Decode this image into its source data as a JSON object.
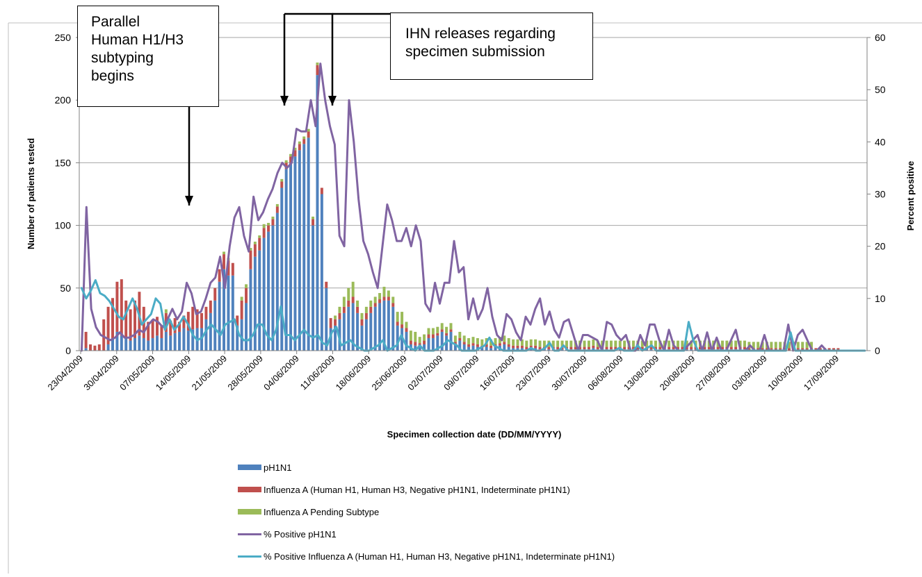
{
  "chart_data": {
    "type": "bar",
    "xlabel": "Specimen collection date (DD/MM/YYYY)",
    "ylabel_left": "Number of patients tested",
    "ylabel_right": "Percent positive",
    "ylim_left": [
      0,
      250
    ],
    "ylim_right": [
      0,
      60
    ],
    "yticks_left": [
      "0",
      "50",
      "100",
      "150",
      "200",
      "250"
    ],
    "yticks_right": [
      "0",
      "10",
      "20",
      "30",
      "40",
      "50",
      "60"
    ],
    "grid": true,
    "x_tick_labels": [
      "23/04/2009",
      "30/04/2009",
      "07/05/2009",
      "14/05/2009",
      "21/05/2009",
      "28/05/2009",
      "04/06/2009",
      "11/06/2009",
      "18/06/2009",
      "25/06/2009",
      "02/07/2009",
      "09/07/2009",
      "16/07/2009",
      "23/07/2009",
      "30/07/2009",
      "06/08/2009",
      "13/08/2009",
      "20/08/2009",
      "27/08/2009",
      "03/09/2009",
      "10/09/2009",
      "17/09/2009"
    ],
    "legend_position": "bottom",
    "series": [
      {
        "name": "pH1N1",
        "kind": "bar",
        "color": "#4f81bd",
        "axis": "left",
        "values": [
          0,
          2,
          0,
          0,
          0,
          0,
          5,
          10,
          15,
          12,
          10,
          8,
          10,
          12,
          10,
          8,
          10,
          12,
          10,
          15,
          12,
          14,
          15,
          18,
          16,
          17,
          18,
          18,
          25,
          30,
          40,
          55,
          65,
          60,
          60,
          20,
          25,
          38,
          65,
          75,
          80,
          90,
          95,
          100,
          110,
          130,
          145,
          150,
          155,
          160,
          165,
          170,
          100,
          220,
          125,
          50,
          18,
          20,
          25,
          30,
          35,
          38,
          30,
          20,
          25,
          30,
          35,
          38,
          40,
          40,
          35,
          20,
          18,
          15,
          5,
          4,
          3,
          5,
          10,
          10,
          12,
          15,
          12,
          15,
          5,
          8,
          5,
          3,
          4,
          3,
          2,
          3,
          2,
          3,
          4,
          5,
          3,
          2,
          2,
          2,
          1,
          2,
          2,
          1,
          1,
          1,
          1,
          1,
          1,
          1,
          1,
          1,
          1,
          1,
          1,
          2,
          1,
          1,
          1,
          1,
          1,
          1,
          1,
          1,
          1,
          1,
          1,
          1,
          1,
          1,
          1,
          1,
          1,
          1,
          1,
          1,
          1,
          1,
          1,
          1,
          1,
          1,
          1,
          1,
          1,
          1,
          1,
          1,
          1,
          1,
          0,
          0,
          0,
          0,
          0,
          0,
          0,
          0,
          0,
          0,
          0,
          0,
          0,
          0,
          0,
          0,
          0,
          0,
          0,
          0,
          0,
          0,
          0,
          0,
          0,
          0,
          0
        ]
      },
      {
        "name": "Influenza A (Human H1, Human H3, Negative pH1N1, Indeterminate pH1N1)",
        "kind": "bar",
        "color": "#c0504d",
        "axis": "left",
        "values": [
          0,
          13,
          5,
          4,
          5,
          25,
          30,
          32,
          40,
          45,
          30,
          25,
          30,
          35,
          25,
          15,
          15,
          15,
          10,
          15,
          12,
          12,
          8,
          10,
          15,
          18,
          15,
          12,
          10,
          10,
          10,
          10,
          12,
          12,
          10,
          8,
          15,
          12,
          15,
          10,
          10,
          8,
          5,
          5,
          5,
          5,
          5,
          5,
          5,
          5,
          4,
          5,
          5,
          8,
          5,
          5,
          8,
          5,
          5,
          5,
          5,
          5,
          5,
          5,
          5,
          5,
          3,
          3,
          3,
          3,
          3,
          3,
          3,
          3,
          3,
          3,
          3,
          3,
          3,
          3,
          2,
          2,
          2,
          2,
          2,
          2,
          2,
          2,
          2,
          2,
          2,
          2,
          2,
          2,
          2,
          2,
          2,
          2,
          2,
          2,
          2,
          2,
          2,
          2,
          2,
          2,
          2,
          2,
          2,
          2,
          2,
          2,
          2,
          2,
          2,
          2,
          2,
          2,
          2,
          2,
          2,
          2,
          2,
          2,
          2,
          2,
          2,
          2,
          2,
          2,
          2,
          2,
          2,
          2,
          2,
          2,
          2,
          2,
          2,
          2,
          2,
          2,
          2,
          2,
          2,
          2,
          2,
          2,
          2,
          2,
          2,
          2,
          2,
          2,
          2,
          2,
          2,
          2,
          2,
          2,
          2,
          2,
          2,
          2,
          2,
          2,
          2,
          2,
          2,
          2,
          2
        ]
      },
      {
        "name": "Influenza A Pending Subtype",
        "kind": "bar",
        "color": "#9bbb59",
        "axis": "left",
        "values": [
          0,
          0,
          0,
          0,
          0,
          0,
          0,
          0,
          0,
          0,
          0,
          0,
          0,
          0,
          0,
          0,
          0,
          0,
          0,
          3,
          0,
          0,
          0,
          0,
          0,
          0,
          0,
          0,
          0,
          0,
          0,
          0,
          2,
          2,
          0,
          0,
          3,
          3,
          2,
          2,
          2,
          3,
          2,
          2,
          2,
          2,
          2,
          2,
          2,
          2,
          2,
          2,
          2,
          2,
          0,
          0,
          0,
          3,
          5,
          8,
          10,
          12,
          5,
          5,
          5,
          5,
          5,
          5,
          8,
          5,
          5,
          8,
          10,
          5,
          8,
          8,
          5,
          5,
          5,
          5,
          5,
          5,
          5,
          5,
          5,
          5,
          5,
          5,
          5,
          5,
          5,
          5,
          5,
          5,
          5,
          5,
          5,
          5,
          5,
          5,
          5,
          5,
          5,
          5,
          5,
          5,
          5,
          5,
          5,
          5,
          5,
          5,
          5,
          5,
          5,
          5,
          5,
          5,
          5,
          5,
          5,
          5,
          5,
          5,
          5,
          5,
          5,
          5,
          5,
          5,
          5,
          5,
          5,
          5,
          5,
          5,
          5,
          5,
          5,
          5,
          5,
          5,
          5,
          5,
          5,
          5,
          5,
          5,
          5,
          5,
          5,
          5,
          5,
          5,
          5,
          5,
          5,
          5,
          5,
          5,
          5,
          5,
          5,
          5,
          5
        ]
      },
      {
        "name": "% Positive pH1N1",
        "kind": "line",
        "color": "#8064a2",
        "axis": "right",
        "values": [
          0,
          27.5,
          8,
          4.5,
          3,
          2.5,
          2,
          2.5,
          3.5,
          2.5,
          2.5,
          3,
          4,
          3.5,
          5,
          6,
          5.5,
          4.5,
          6,
          8,
          6,
          7.5,
          13,
          11,
          7,
          7.5,
          10,
          13,
          14,
          18,
          12,
          20,
          25.5,
          27.5,
          22,
          19,
          29.5,
          25,
          26.5,
          29,
          31,
          34,
          36,
          35,
          36,
          42.5,
          42,
          42,
          48,
          43,
          55,
          48,
          43,
          39.5,
          22,
          20,
          48,
          40,
          29,
          21,
          18.5,
          15,
          12,
          20,
          28,
          25,
          21,
          21,
          23.5,
          20,
          24,
          21,
          9,
          7.5,
          13,
          9,
          13,
          13,
          21,
          15,
          16,
          6,
          10,
          6,
          8,
          12,
          6.5,
          3,
          2,
          7,
          6,
          3.5,
          2,
          6.5,
          5,
          8,
          10,
          5,
          7.5,
          4,
          2.5,
          5.5,
          6,
          3,
          0,
          3,
          3,
          2.5,
          2,
          0,
          5.5,
          5,
          3,
          2,
          3,
          0,
          0,
          3,
          1,
          5,
          5,
          2,
          0,
          4,
          1,
          0,
          0,
          1,
          2,
          3,
          0,
          3.5,
          0,
          2.5,
          0,
          0,
          2,
          4,
          0,
          0,
          1,
          0,
          0,
          3,
          0,
          0,
          0,
          0,
          5,
          0,
          3,
          4,
          2,
          0,
          0,
          1,
          0,
          0,
          0,
          0,
          0,
          0,
          0,
          0,
          0
        ]
      },
      {
        "name": "% Positive Influenza A (Human H1, Human H3, Negative pH1N1, Indeterminate pH1N1)",
        "kind": "line",
        "color": "#4bacc6",
        "axis": "right",
        "values": [
          12,
          10,
          11.5,
          13.5,
          11,
          10.5,
          9.5,
          8,
          6.5,
          6,
          8,
          10,
          8,
          5,
          6,
          7,
          10,
          9,
          4,
          6,
          4,
          5,
          6.5,
          5,
          3,
          2,
          2.5,
          4,
          5,
          4,
          3,
          5,
          5.5,
          6,
          3,
          2,
          2,
          3,
          5,
          5,
          3,
          2,
          4,
          8.5,
          3,
          3,
          2,
          3,
          4,
          3,
          2.5,
          3,
          1.5,
          1,
          3.5,
          4.5,
          1,
          1.5,
          2,
          1,
          0.5,
          0,
          0,
          0.5,
          1,
          2,
          0,
          0.5,
          1,
          3,
          1,
          0.5,
          0,
          1,
          0,
          0,
          0,
          0.5,
          1,
          2,
          1.5,
          1,
          0,
          0,
          0,
          0,
          0.5,
          1,
          2.5,
          1,
          0.5,
          0,
          0,
          0,
          0,
          0,
          0,
          0.5,
          0,
          0,
          0.5,
          1.5,
          0,
          0,
          1,
          0,
          0,
          0,
          0,
          0,
          0,
          0,
          0,
          0,
          0,
          0,
          0.5,
          0,
          0,
          0,
          1,
          0,
          0.5,
          1,
          0,
          0,
          0,
          0,
          0,
          0,
          0,
          5.5,
          2,
          0,
          0,
          0,
          0,
          0,
          0,
          0,
          0,
          0,
          0,
          0,
          0,
          0,
          0,
          0,
          0,
          0,
          0,
          0,
          0,
          3.5,
          0,
          0,
          0,
          0,
          0,
          0,
          0,
          0,
          0,
          0,
          0,
          0,
          0,
          0,
          0,
          0
        ]
      }
    ],
    "annotations": [
      {
        "id": "annot-subtyping",
        "text": [
          "Parallel",
          "Human H1/H3",
          "subtyping",
          "begins"
        ]
      },
      {
        "id": "annot-ihn",
        "text": [
          "IHN releases regarding",
          "specimen submission"
        ]
      }
    ]
  },
  "colors": {
    "ph1n1": "#4f81bd",
    "influenza_a": "#c0504d",
    "pending": "#9bbb59",
    "pct_ph1n1": "#8064a2",
    "pct_influenza_a": "#4bacc6",
    "grid": "#a6a6a6"
  }
}
